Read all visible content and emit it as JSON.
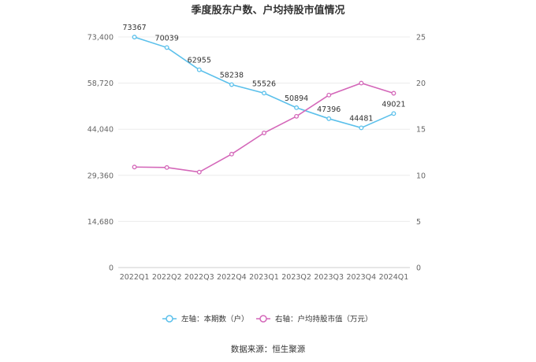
{
  "chart_data": {
    "type": "line",
    "title": "季度股东户数、户均持股市值情况",
    "categories": [
      "2022Q1",
      "2022Q2",
      "2022Q3",
      "2022Q4",
      "2023Q1",
      "2023Q2",
      "2023Q3",
      "2023Q4",
      "2024Q1"
    ],
    "left_axis": {
      "ylim": [
        0,
        73400
      ],
      "ticks": [
        0,
        14680,
        29360,
        44040,
        58720,
        73400
      ],
      "tick_labels": [
        "0",
        "14,680",
        "29,360",
        "44,040",
        "58,720",
        "73,400"
      ]
    },
    "right_axis": {
      "ylim": [
        0,
        25
      ],
      "ticks": [
        0,
        5,
        10,
        15,
        20,
        25
      ],
      "tick_labels": [
        "0",
        "5",
        "10",
        "15",
        "20",
        "25"
      ]
    },
    "series": [
      {
        "name": "左轴：本期数（户）",
        "axis": "left",
        "color": "#5bc0eb",
        "values": [
          73367,
          70039,
          62955,
          58238,
          55526,
          50894,
          47396,
          44481,
          49021
        ],
        "labels": [
          "73367",
          "70039",
          "62955",
          "58238",
          "55526",
          "50894",
          "47396",
          "44481",
          "49021"
        ]
      },
      {
        "name": "右轴：户均持股市值（万元）",
        "axis": "right",
        "color": "#d467b9",
        "values": [
          10.9,
          10.85,
          10.35,
          12.3,
          14.6,
          16.4,
          18.7,
          20.0,
          18.9
        ]
      }
    ],
    "grid": true,
    "legend_position": "bottom"
  },
  "footer": {
    "source": "数据来源：恒生聚源"
  }
}
